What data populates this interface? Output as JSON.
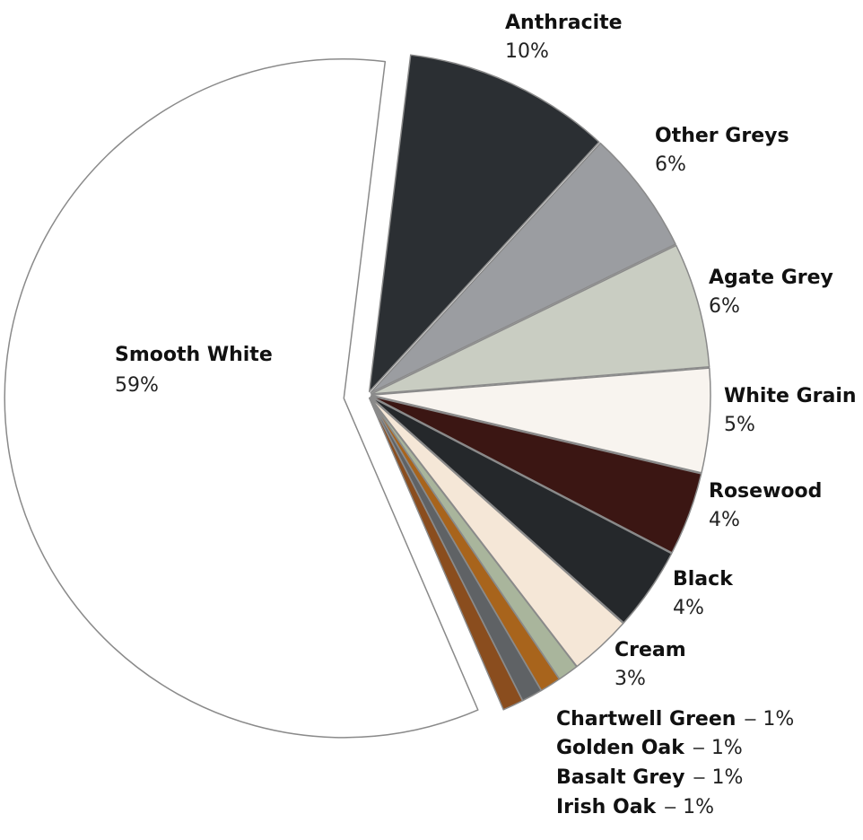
{
  "chart_data": {
    "type": "pie",
    "categories": [
      "Anthracite",
      "Other Greys",
      "Agate Grey",
      "White Grain",
      "Rosewood",
      "Black",
      "Cream",
      "Chartwell Green",
      "Golden Oak",
      "Basalt Grey",
      "Irish Oak",
      "Smooth White"
    ],
    "values": [
      10,
      6,
      6,
      5,
      4,
      4,
      3,
      1,
      1,
      1,
      1,
      59
    ],
    "value_labels": [
      "10%",
      "6%",
      "6%",
      "5%",
      "4%",
      "4%",
      "3%",
      "1%",
      "1%",
      "1%",
      "1%",
      "59%"
    ],
    "colors": [
      "#2b2f33",
      "#9b9da1",
      "#c9cdc2",
      "#f8f4ef",
      "#3b1613",
      "#25282b",
      "#f5e7d7",
      "#a9b59c",
      "#a8641c",
      "#5f6265",
      "#8a4d1e",
      "#ffffff"
    ]
  }
}
